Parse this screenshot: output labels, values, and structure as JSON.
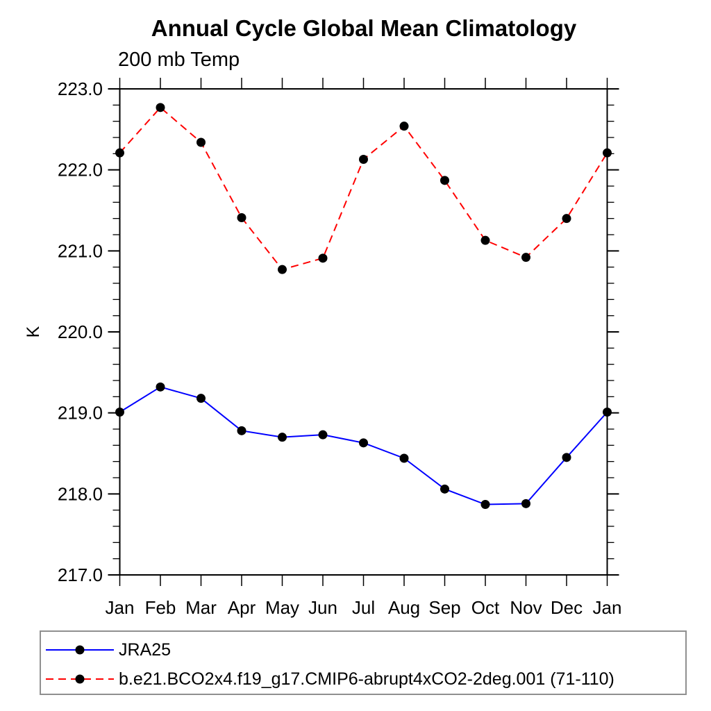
{
  "title": "Annual Cycle Global Mean Climatology",
  "subtitle": "200 mb Temp",
  "chart_data": {
    "type": "line",
    "categories": [
      "Jan",
      "Feb",
      "Mar",
      "Apr",
      "May",
      "Jun",
      "Jul",
      "Aug",
      "Sep",
      "Oct",
      "Nov",
      "Dec",
      "Jan"
    ],
    "xlabel": "",
    "ylabel": "K",
    "ylim": [
      217.0,
      223.0
    ],
    "ytick_step": 1.0,
    "yminor_step": 0.2,
    "ytick_labels": [
      "217.0",
      "218.0",
      "219.0",
      "220.0",
      "221.0",
      "222.0",
      "223.0"
    ],
    "grid": false,
    "frame": "box-with-outward-ticks",
    "legend_position": "bottom-left-box",
    "series": [
      {
        "name": "JRA25",
        "color": "#0000ff",
        "dash": "solid",
        "marker": "filled-circle",
        "marker_color": "#000000",
        "values": [
          219.01,
          219.32,
          219.18,
          218.78,
          218.7,
          218.73,
          218.63,
          218.44,
          218.06,
          217.87,
          217.88,
          218.45,
          219.01
        ]
      },
      {
        "name": "b.e21.BCO2x4.f19_g17.CMIP6-abrupt4xCO2-2deg.001 (71-110)",
        "color": "#ff0000",
        "dash": "dashed",
        "marker": "filled-circle",
        "marker_color": "#000000",
        "values": [
          222.21,
          222.77,
          222.34,
          221.41,
          220.77,
          220.91,
          222.13,
          222.54,
          221.87,
          221.13,
          220.92,
          221.4,
          222.21
        ]
      }
    ]
  },
  "colors": {
    "axis": "#000000",
    "text": "#000000",
    "legend_border": "#8f8f8f",
    "background": "#ffffff"
  }
}
